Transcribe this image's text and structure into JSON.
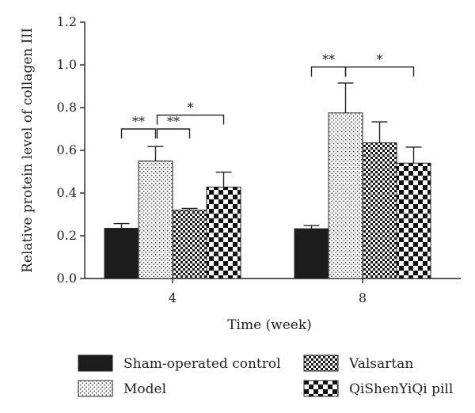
{
  "chart_data": {
    "type": "bar",
    "title": "",
    "xlabel": "Time (week)",
    "ylabel": "Relative protein level of collagen III",
    "ylim": [
      0,
      1.2
    ],
    "yticks": [
      "0.0",
      "0.2",
      "0.4",
      "0.6",
      "0.8",
      "1.0",
      "1.2"
    ],
    "categories": [
      "4",
      "8"
    ],
    "series": [
      {
        "name": "Sham-operated control",
        "values": [
          0.235,
          0.233
        ],
        "errors": [
          0.022,
          0.015
        ],
        "pattern": "solid"
      },
      {
        "name": "Model",
        "values": [
          0.55,
          0.775
        ],
        "errors": [
          0.068,
          0.14
        ],
        "pattern": "dots"
      },
      {
        "name": "Valsartan",
        "values": [
          0.32,
          0.635
        ],
        "errors": [
          0.008,
          0.098
        ],
        "pattern": "fine-check"
      },
      {
        "name": "QiShenYiQi pill",
        "values": [
          0.428,
          0.54
        ],
        "errors": [
          0.07,
          0.075
        ],
        "pattern": "coarse-check"
      }
    ],
    "significance": [
      {
        "category": 0,
        "from_series": 0,
        "to_series": 1,
        "label": "**"
      },
      {
        "category": 0,
        "from_series": 1,
        "to_series": 2,
        "label": "**"
      },
      {
        "category": 0,
        "from_series": 1,
        "to_series": 3,
        "label": "*"
      },
      {
        "category": 1,
        "from_series": 0,
        "to_series": 1,
        "label": "**"
      },
      {
        "category": 1,
        "from_series": 1,
        "to_series": 3,
        "label": "*"
      }
    ],
    "legend_position": "bottom",
    "grid": false
  }
}
